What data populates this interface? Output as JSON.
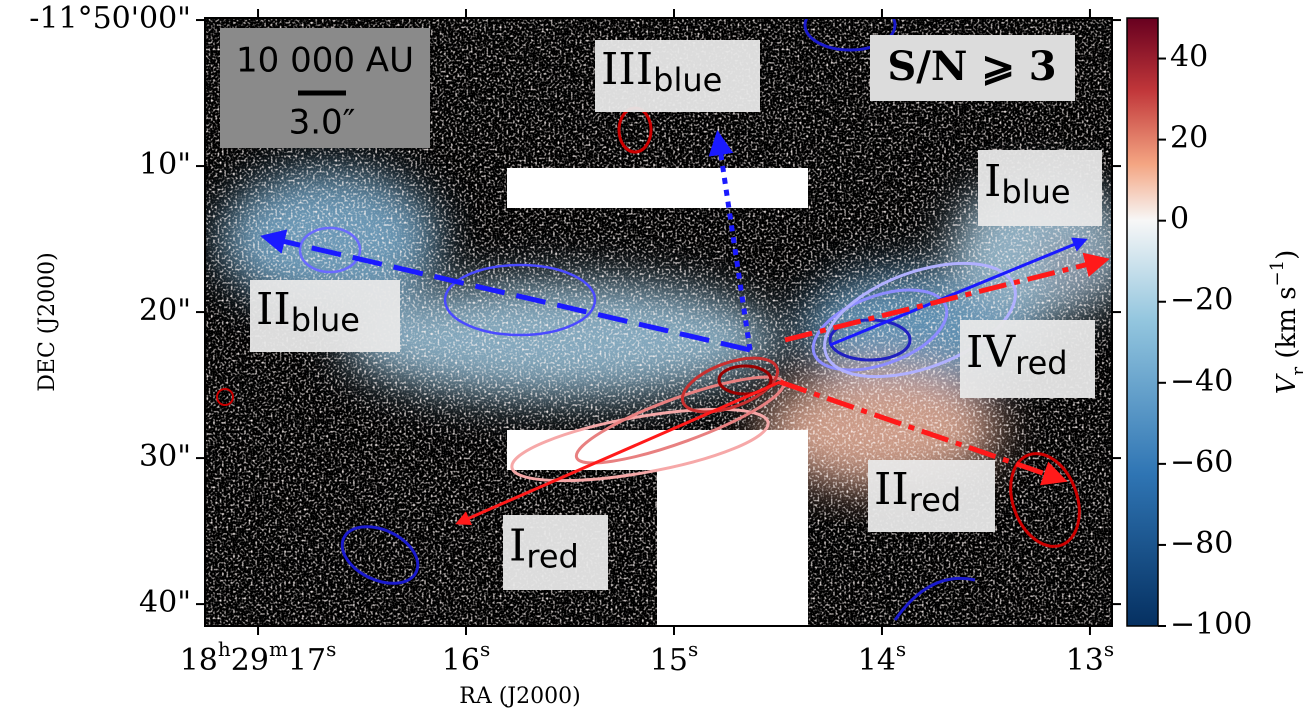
{
  "chart_data": {
    "type": "image",
    "xlabel": "RA (J2000)",
    "ylabel": "DEC (J2000)",
    "xlim": [
      17.255,
      12.894
    ],
    "ylim": [
      -0.14,
      41.5
    ],
    "xticks": [
      {
        "value": 17,
        "label": "18h29m17s"
      },
      {
        "value": 16,
        "label": "16s"
      },
      {
        "value": 15,
        "label": "15s"
      },
      {
        "value": 14,
        "label": "14s"
      },
      {
        "value": 13,
        "label": "13s"
      }
    ],
    "yticks": [
      {
        "value": 0,
        "label": "-11°50'00\""
      },
      {
        "value": 10,
        "label": "10\""
      },
      {
        "value": 20,
        "label": "20\""
      },
      {
        "value": 30,
        "label": "30\""
      },
      {
        "value": 40,
        "label": "40\""
      }
    ],
    "colorbar": {
      "label": [
        "V",
        "r",
        " (km s",
        "−1",
        ")"
      ],
      "clim": [
        -100,
        50
      ],
      "ticks": [
        {
          "value": 40,
          "label": "40"
        },
        {
          "value": 20,
          "label": "20"
        },
        {
          "value": 0,
          "label": "0"
        },
        {
          "value": -20,
          "label": "−20"
        },
        {
          "value": -40,
          "label": "−40"
        },
        {
          "value": -60,
          "label": "−60"
        },
        {
          "value": -80,
          "label": "−80"
        },
        {
          "value": -100,
          "label": "−100"
        }
      ]
    },
    "scalebar": {
      "length_label": "10 000 AU",
      "angle_label": "3.0″"
    },
    "threshold_label": "S/N ⩾ 3",
    "annotations": [
      {
        "text": "III",
        "sub": "blue",
        "color": "#1a1aff"
      },
      {
        "text": "I",
        "sub": "blue",
        "color": "#1a1aff"
      },
      {
        "text": "II",
        "sub": "blue",
        "color": "#1a1aff"
      },
      {
        "text": "IV",
        "sub": "red",
        "color": "#ff1a1a"
      },
      {
        "text": "II",
        "sub": "red",
        "color": "#ff1a1a"
      },
      {
        "text": "I",
        "sub": "red",
        "color": "#ff1a1a"
      }
    ]
  }
}
